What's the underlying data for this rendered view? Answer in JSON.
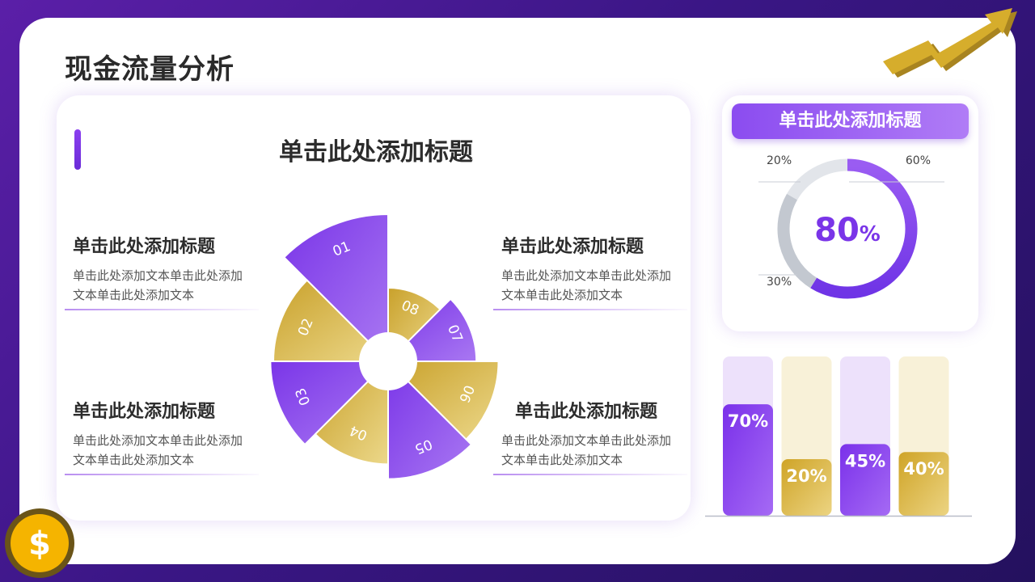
{
  "page": {
    "title": "现金流量分析"
  },
  "left": {
    "title": "单击此处添加标题",
    "blocks": [
      {
        "title": "单击此处添加标题",
        "body": "单击此处添加文本单击此处添加文本单击此处添加文本"
      },
      {
        "title": "单击此处添加标题",
        "body": "单击此处添加文本单击此处添加文本单击此处添加文本"
      },
      {
        "title": "单击此处添加标题",
        "body": "单击此处添加文本单击此处添加文本单击此处添加文本"
      },
      {
        "title": "单击此处添加标题",
        "body": "单击此处添加文本单击此处添加文本单击此处添加文本"
      }
    ]
  },
  "right": {
    "title": "单击此处添加标题"
  },
  "colors": {
    "purple": "#8a3ff0",
    "purple_light": "#b58cf4",
    "gold": "#d4a92c",
    "gold_light": "#ecd27a",
    "gray": "#c3c8d0",
    "gray_light": "#e2e5ea",
    "track_purple": "#ede1fb",
    "track_gold": "#f8f1d8"
  },
  "icons": {
    "corner": "trend-arrow-icon",
    "coin": "dollar-coin-icon"
  },
  "chart_data": [
    {
      "type": "pie",
      "variant": "rose",
      "categories": [
        "01",
        "02",
        "03",
        "04",
        "05",
        "06",
        "07",
        "08"
      ],
      "values": [
        1.0,
        0.78,
        0.8,
        0.7,
        0.8,
        0.75,
        0.6,
        0.5
      ],
      "colors": [
        "purple",
        "gold",
        "purple",
        "gold",
        "purple",
        "gold",
        "purple",
        "gold"
      ]
    },
    {
      "type": "pie",
      "variant": "donut",
      "center_value": "80",
      "center_unit": "%",
      "segments": [
        {
          "label": "60%",
          "value": 60,
          "color": "purple"
        },
        {
          "label": "30%",
          "value": 30,
          "color": "gray"
        },
        {
          "label": "20%",
          "value": 20,
          "color": "gray_light"
        }
      ]
    },
    {
      "type": "bar",
      "values": [
        70,
        20,
        45,
        40
      ],
      "labels": [
        "70%",
        "20%",
        "45%",
        "40%"
      ],
      "ylim": [
        0,
        100
      ],
      "colors": [
        "purple",
        "gold",
        "purple",
        "gold"
      ]
    }
  ]
}
